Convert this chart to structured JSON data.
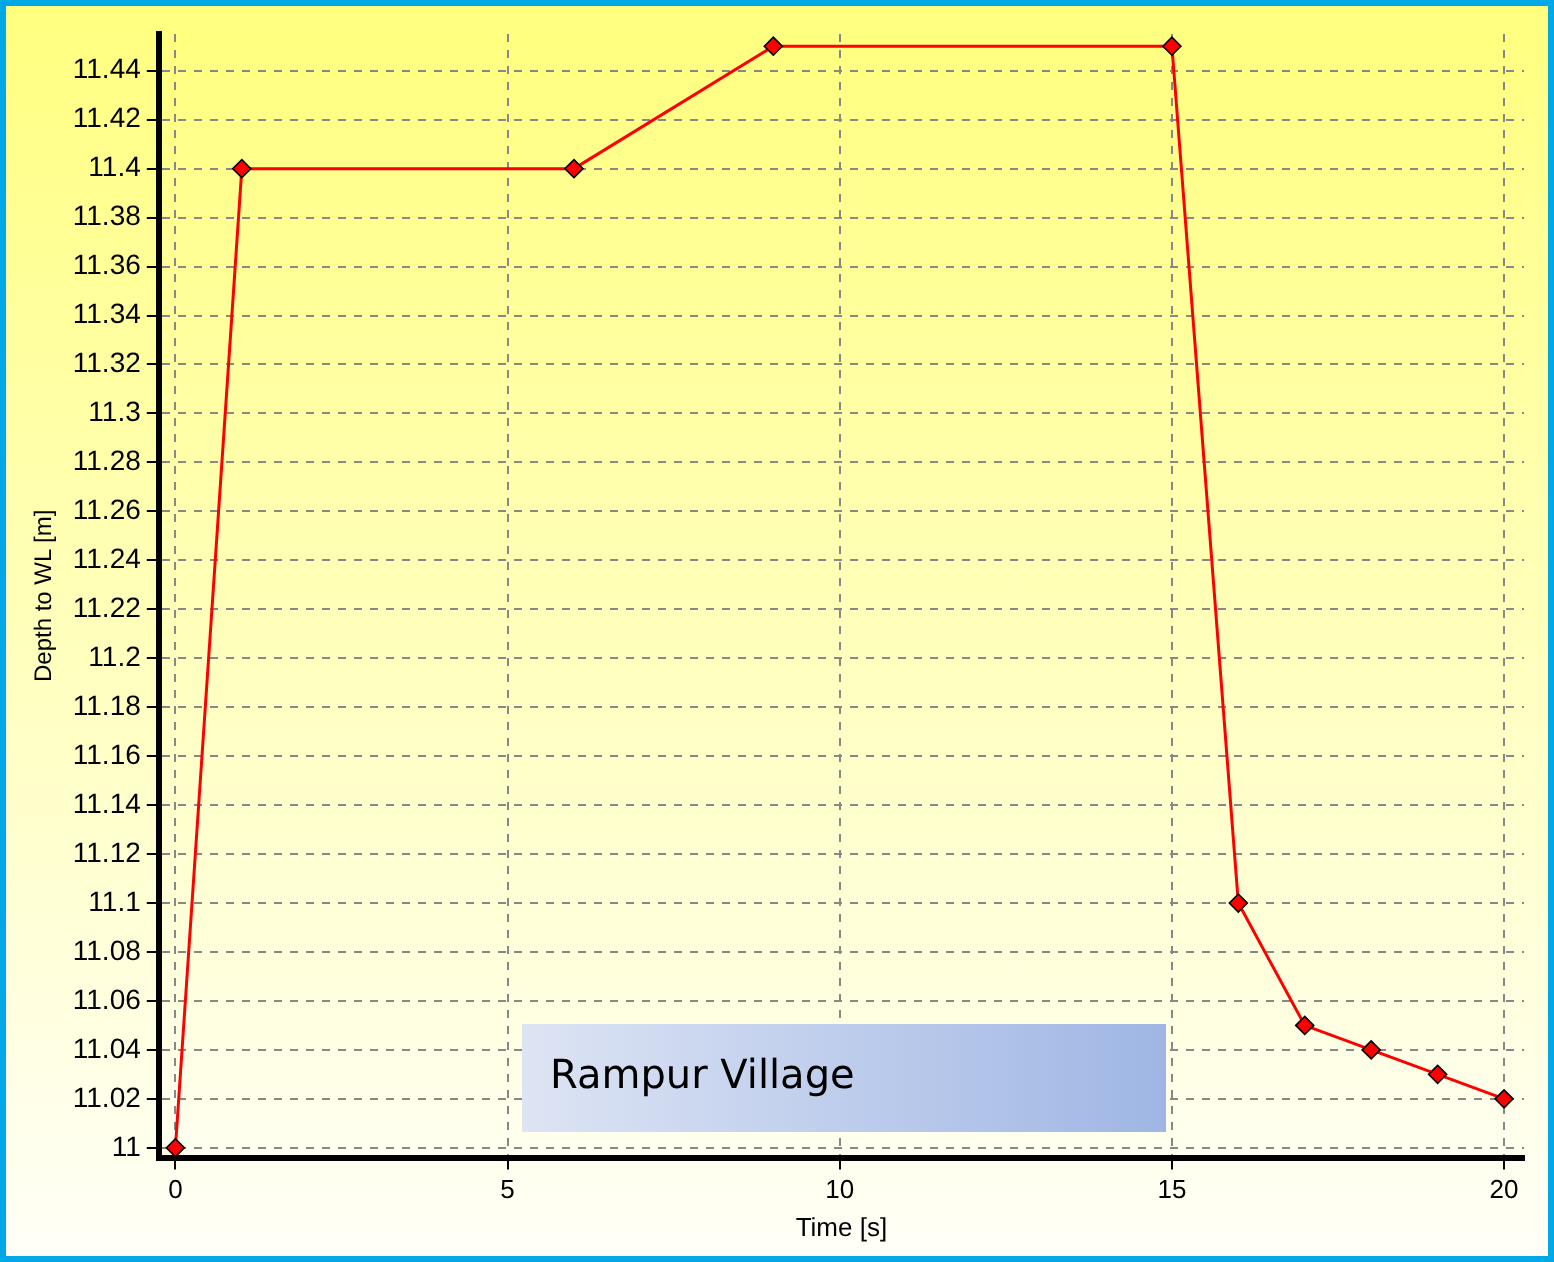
{
  "chart_data": {
    "type": "line",
    "xlabel": "Time [s]",
    "ylabel": "Depth to WL [m]",
    "annotations": [
      "Rampur Village"
    ],
    "x": [
      0,
      1,
      6,
      9,
      15,
      16,
      17,
      18,
      19,
      20
    ],
    "series": [
      {
        "color": "#ff0000",
        "values": [
          11,
          11.4,
          11.4,
          11.45,
          11.45,
          11.1,
          11.05,
          11.04,
          11.03,
          11.02
        ]
      }
    ],
    "xlim": [
      -0.25,
      20.3
    ],
    "xticks": [
      0,
      5,
      10,
      15,
      20
    ],
    "ylim": [
      10.996,
      11.455
    ],
    "yticks": [
      11,
      11.02,
      11.04,
      11.06,
      11.08,
      11.1,
      11.12,
      11.14,
      11.16,
      11.18,
      11.2,
      11.22,
      11.24,
      11.26,
      11.28,
      11.3,
      11.32,
      11.34,
      11.36,
      11.38,
      11.4,
      11.42,
      11.44
    ],
    "grid": true,
    "legend": false,
    "marker": "diamond",
    "line_style": "solid"
  }
}
